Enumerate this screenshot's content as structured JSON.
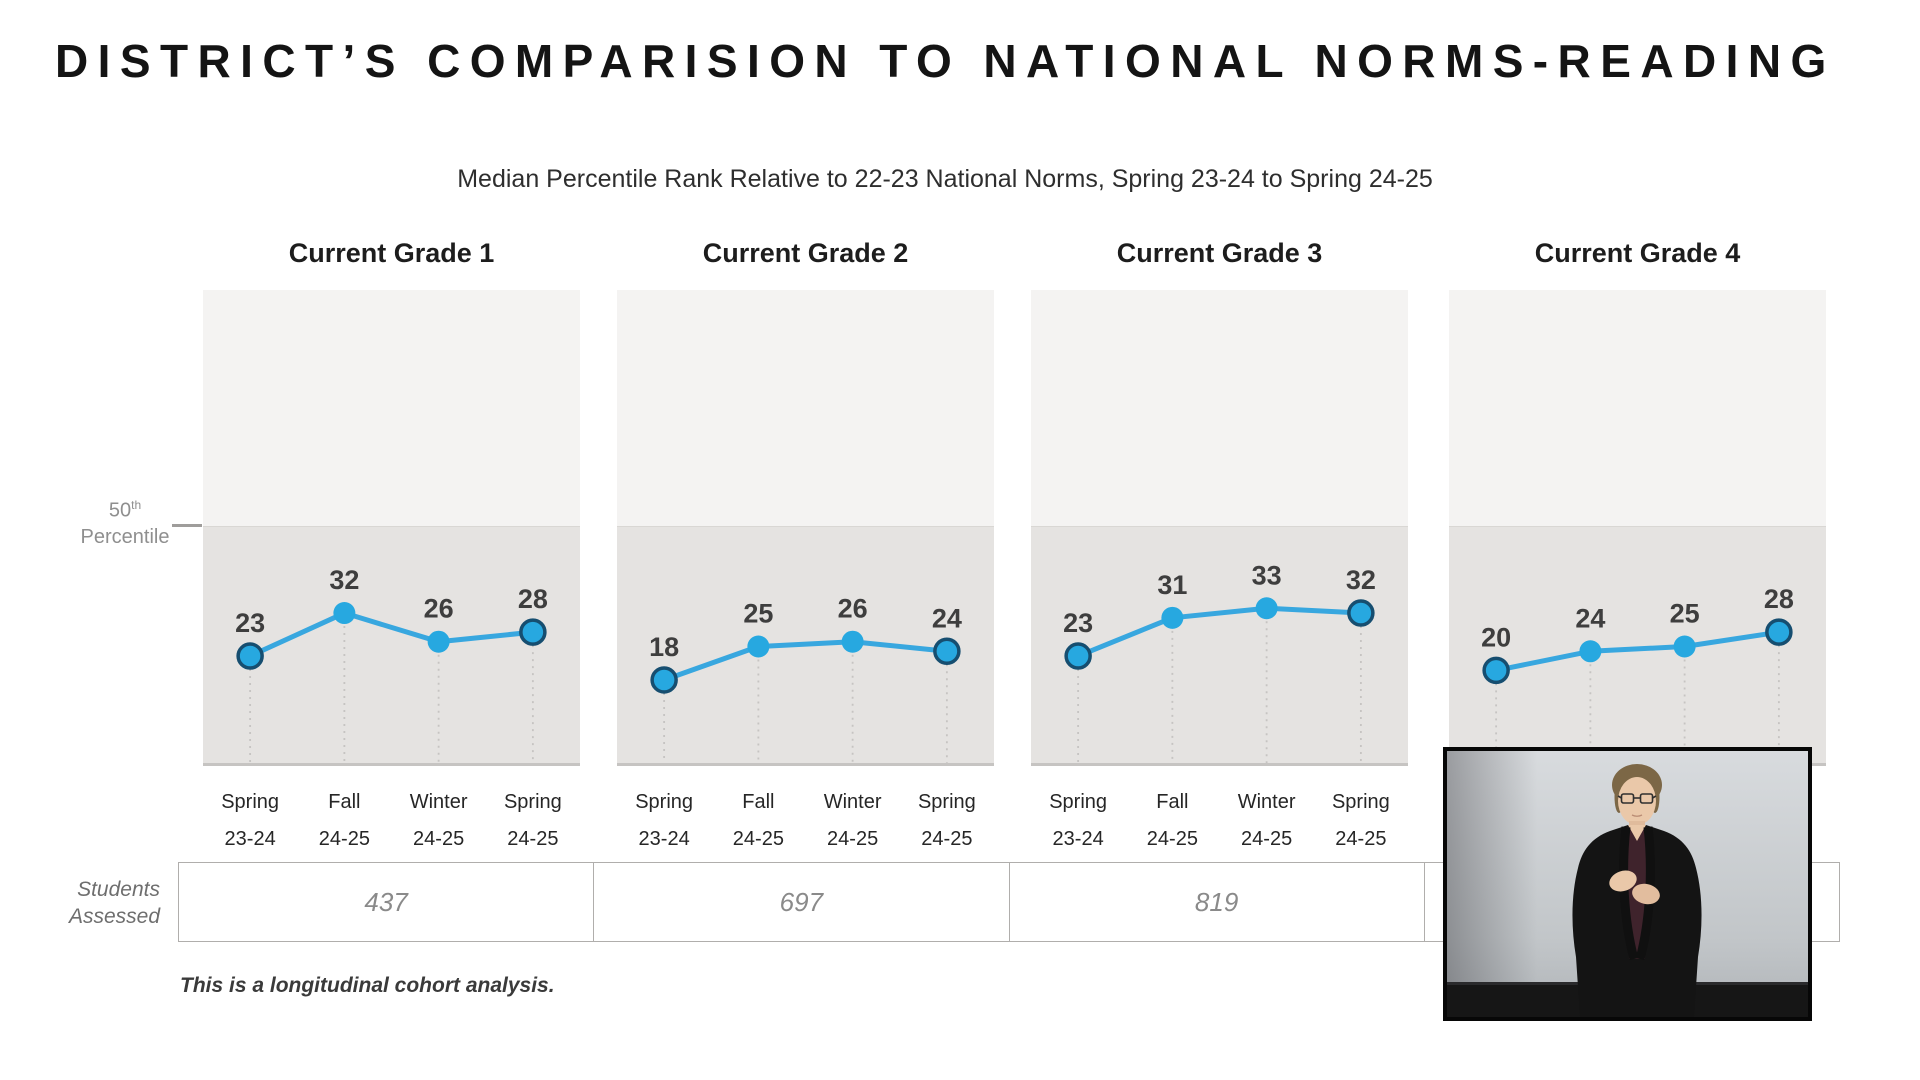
{
  "page": {
    "title": "D I S T R I C T ’ S   C O M P A R I S I O N   T O   N A T I O N A L   N O R M S - R E A D I N G",
    "title_plain": "DISTRICT’S COMPARISION TO NATIONAL NORMS-READING",
    "footnote": "This is a longitudinal cohort analysis."
  },
  "chart_data": {
    "type": "line",
    "title": "Median Percentile Rank Relative to 22-23 National Norms, Spring 23-24 to Spring 24-25",
    "categories": [
      "Spring 23-24",
      "Fall 24-25",
      "Winter 24-25",
      "Spring 24-25"
    ],
    "category_lines": [
      [
        "Spring",
        "23-24"
      ],
      [
        "Fall",
        "24-25"
      ],
      [
        "Winter",
        "24-25"
      ],
      [
        "Spring",
        "24-25"
      ]
    ],
    "ylim": [
      0,
      100
    ],
    "grid": false,
    "legend": "none",
    "point_labels_shown": true,
    "reference_line": {
      "value": 50,
      "label_num": "50",
      "label_sup": "th",
      "label_word": "Percentile"
    },
    "panels": [
      {
        "name": "Current Grade 1",
        "values": [
          23,
          32,
          26,
          28
        ]
      },
      {
        "name": "Current Grade 2",
        "values": [
          18,
          25,
          26,
          24
        ]
      },
      {
        "name": "Current Grade 3",
        "values": [
          23,
          31,
          33,
          32
        ]
      },
      {
        "name": "Current Grade 4",
        "values": [
          20,
          24,
          25,
          28
        ]
      }
    ],
    "colors": {
      "line": "#38a7df",
      "point_fill": "#27a8e0",
      "point_ring": "#164e70",
      "band_above_50": "#f4f3f2",
      "band_below_50": "#e5e3e1",
      "band_bottom_edge": "#c6c4c2",
      "drop_line": "#c6c4c2",
      "value_label": "#3e3e3e"
    }
  },
  "students_row": {
    "label_line1": "Students",
    "label_line2": "Assessed",
    "values": [
      "437",
      "697",
      "819",
      null
    ]
  },
  "video": {
    "semantic": "sign-language-interpreter-video"
  }
}
